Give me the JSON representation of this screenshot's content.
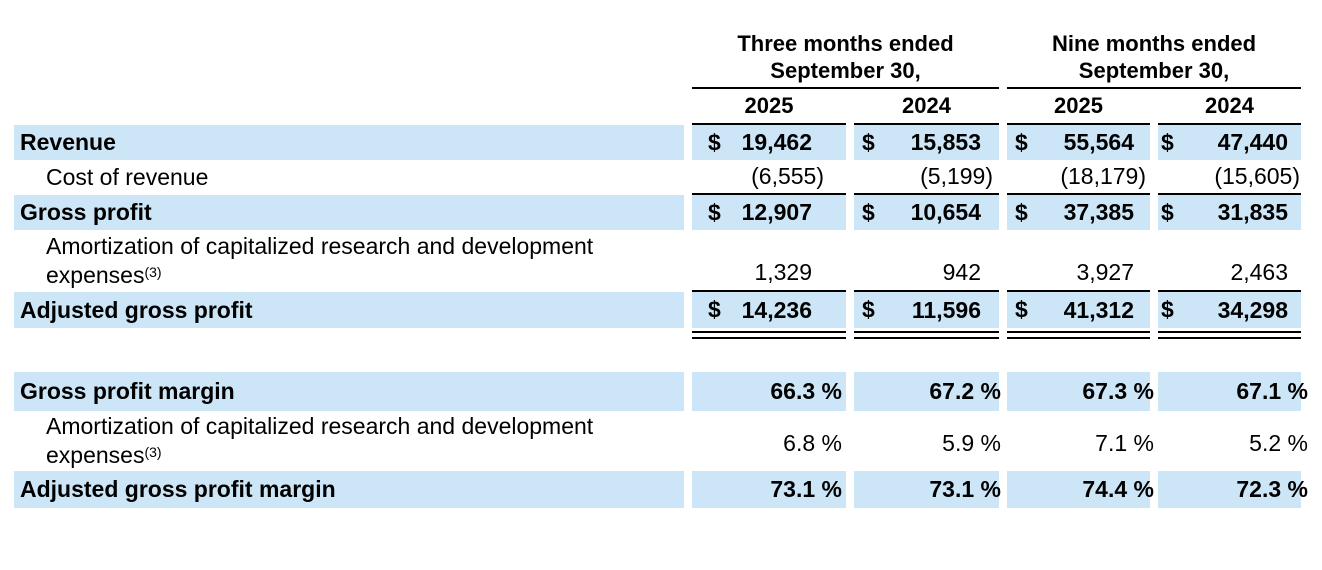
{
  "currency_symbol": "$",
  "table": {
    "column_groups": [
      {
        "line1": "Three months ended",
        "line2": "September 30,"
      },
      {
        "line1": "Nine months ended",
        "line2": "September 30,"
      }
    ],
    "year_columns": [
      "2025",
      "2024",
      "2025",
      "2024"
    ],
    "rows": [
      {
        "label": "Revenue",
        "values": [
          "19,462",
          "15,853",
          "55,564",
          "47,440"
        ]
      },
      {
        "label": "Cost of revenue",
        "values": [
          "(6,555)",
          "(5,199)",
          "(18,179)",
          "(15,605)"
        ]
      },
      {
        "label": "Gross profit",
        "values": [
          "12,907",
          "10,654",
          "37,385",
          "31,835"
        ]
      },
      {
        "label": "Amortization of capitalized research and development expenses",
        "footnote": "(3)",
        "values": [
          "1,329",
          "942",
          "3,927",
          "2,463"
        ]
      },
      {
        "label": "Adjusted gross profit",
        "values": [
          "14,236",
          "11,596",
          "41,312",
          "34,298"
        ]
      },
      {
        "label": "Gross profit margin",
        "values": [
          "66.3 %",
          "67.2 %",
          "67.3 %",
          "67.1 %"
        ]
      },
      {
        "label": "Amortization of capitalized research and development expenses",
        "footnote": "(3)",
        "values": [
          "6.8 %",
          "5.9 %",
          "7.1 %",
          "5.2 %"
        ]
      },
      {
        "label": "Adjusted gross profit margin",
        "values": [
          "73.1 %",
          "73.1 %",
          "74.4 %",
          "72.3 %"
        ]
      }
    ],
    "colors": {
      "row_highlight": "#cde6f7",
      "text": "#000000",
      "rule": "#000000"
    }
  }
}
